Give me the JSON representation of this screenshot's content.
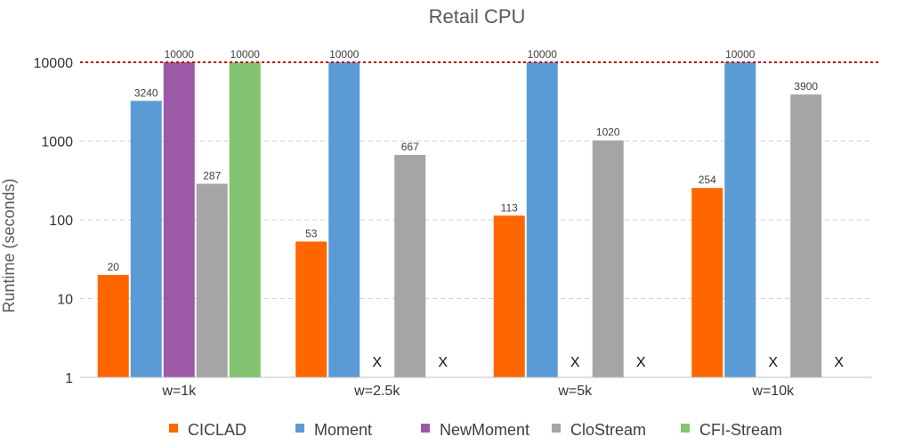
{
  "chart_data": {
    "type": "bar",
    "title": "Retail CPU",
    "ylabel": "Runtime (seconds)",
    "xlabel": "",
    "yscale": "log",
    "ylim": [
      1,
      10000
    ],
    "yticks": [
      "1",
      "10",
      "100",
      "1000",
      "10000"
    ],
    "grid": true,
    "reference_line": {
      "value": 10000,
      "color": "#c00000",
      "style": "dotted"
    },
    "legend_position": "bottom",
    "categories": [
      "w=1k",
      "w=2.5k",
      "w=5k",
      "w=10k"
    ],
    "series": [
      {
        "name": "CICLAD",
        "color": "#ff6600",
        "values": [
          20,
          53,
          113,
          254
        ],
        "labels": [
          "20",
          "53",
          "113",
          "254"
        ]
      },
      {
        "name": "Moment",
        "color": "#5b9bd5",
        "values": [
          3240,
          10000,
          10000,
          10000
        ],
        "labels": [
          "3240",
          "10000",
          "10000",
          "10000"
        ]
      },
      {
        "name": "NewMoment",
        "color": "#9b59a6",
        "values": [
          10000,
          null,
          null,
          null
        ],
        "labels": [
          "10000",
          "X",
          "X",
          "X"
        ]
      },
      {
        "name": "CloStream",
        "color": "#a5a5a5",
        "values": [
          287,
          667,
          1020,
          3900
        ],
        "labels": [
          "287",
          "667",
          "1020",
          "3900"
        ]
      },
      {
        "name": "CFI-Stream",
        "color": "#84c36f",
        "values": [
          10000,
          null,
          null,
          null
        ],
        "labels": [
          "10000",
          "X",
          "X",
          "X"
        ]
      }
    ]
  }
}
